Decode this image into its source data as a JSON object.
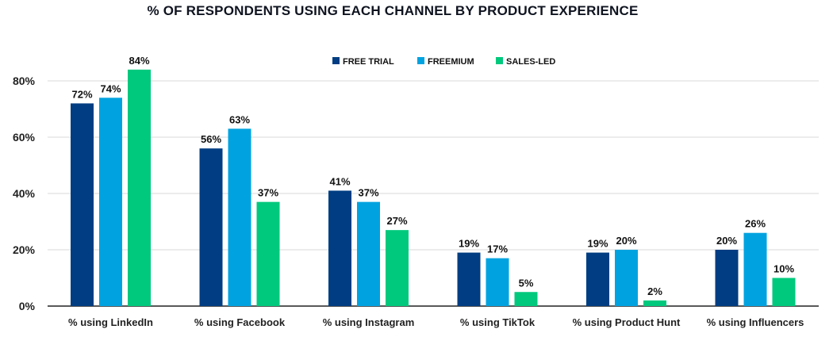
{
  "chart_data": {
    "type": "bar",
    "title": "% OF RESPONDENTS USING EACH CHANNEL BY PRODUCT EXPERIENCE",
    "xlabel": "",
    "ylabel": "",
    "ylim": [
      0,
      80
    ],
    "yticks": [
      0,
      20,
      40,
      60,
      80
    ],
    "ytick_labels": [
      "0%",
      "20%",
      "40%",
      "60%",
      "80%"
    ],
    "grid": true,
    "legend_position": "top",
    "categories": [
      "% using LinkedIn",
      "% using Facebook",
      "% using Instagram",
      "% using TikTok",
      "% using Product Hunt",
      "% using Influencers"
    ],
    "series": [
      {
        "name": "FREE TRIAL",
        "color": "#003d82",
        "values": [
          72,
          56,
          41,
          19,
          19,
          20
        ],
        "labels": [
          "72%",
          "56%",
          "41%",
          "19%",
          "19%",
          "20%"
        ]
      },
      {
        "name": "FREEMIUM",
        "color": "#00a3e0",
        "values": [
          74,
          63,
          37,
          17,
          20,
          26
        ],
        "labels": [
          "74%",
          "63%",
          "37%",
          "17%",
          "20%",
          "26%"
        ]
      },
      {
        "name": "SALES-LED",
        "color": "#00c97d",
        "values": [
          84,
          37,
          27,
          5,
          2,
          10
        ],
        "labels": [
          "84%",
          "37%",
          "27%",
          "5%",
          "2%",
          "10%"
        ]
      }
    ]
  }
}
